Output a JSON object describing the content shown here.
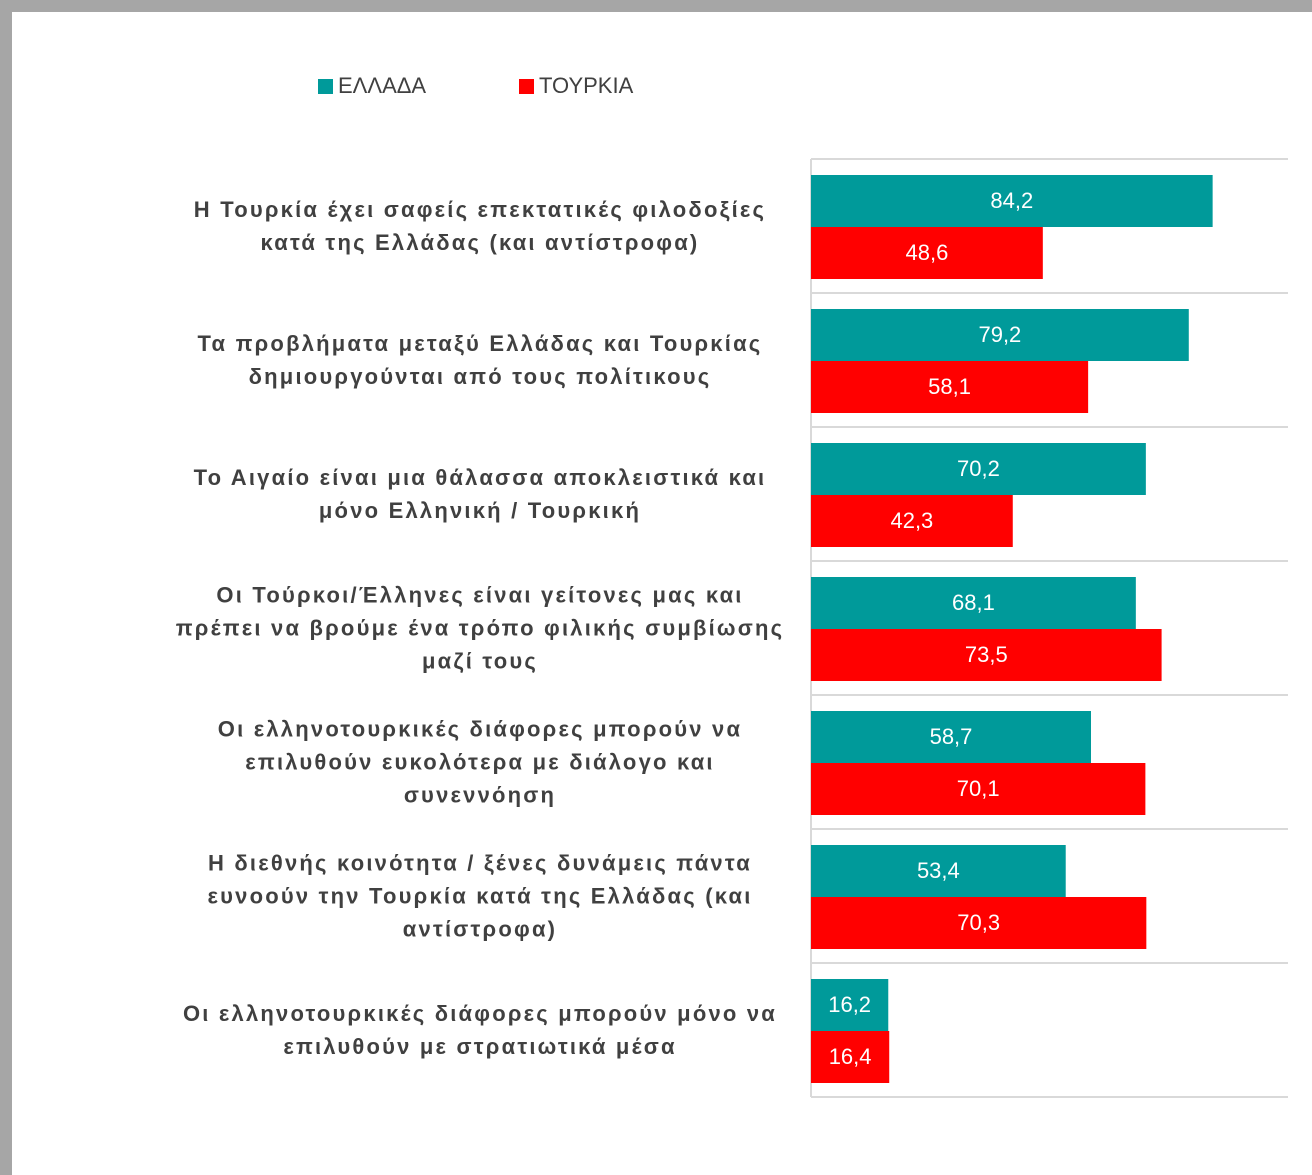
{
  "chart_data": {
    "type": "hbar",
    "categories": [
      "Η Τουρκία έχει σαφείς επεκτατικές φιλοδοξίες κατά της Ελλάδας (και αντίστροφα)",
      "Τα προβλήματα μεταξύ Ελλάδας και Τουρκίας δημιουργούνται από τους πολίτικους",
      "Το Αιγαίο είναι μια θάλασσα αποκλειστικά και μόνο Ελληνική / Τουρκική",
      "Οι Τούρκοι/Έλληνες είναι γείτονες μας και πρέπει να βρούμε ένα τρόπο φιλικής συμβίωσης μαζί τους",
      "Οι ελληνοτουρκικές διάφορες μπορούν να επιλυθούν ευκολότερα με διάλογο και συνεννόηση",
      "Η διεθνής κοινότητα / ξένες δυνάμεις πάντα ευνοούν την Τουρκία κατά της Ελλάδας (και αντίστροφα)",
      "Οι ελληνοτουρκικές διάφορες μπορούν μόνο να επιλυθούν με στρατιωτικά μέσα"
    ],
    "series": [
      {
        "name": "ΕΛΛΑΔΑ",
        "color": "#009a9a",
        "values": [
          84.2,
          79.2,
          70.2,
          68.1,
          58.7,
          53.4,
          16.2
        ],
        "value_labels": [
          "84,2",
          "79,2",
          "70,2",
          "68,1",
          "58,7",
          "53,4",
          "16,2"
        ]
      },
      {
        "name": "ΤΟΥΡΚΙΑ",
        "color": "#ff0000",
        "values": [
          48.6,
          58.1,
          42.3,
          73.5,
          70.1,
          70.3,
          16.4
        ],
        "value_labels": [
          "48,6",
          "58,1",
          "42,3",
          "73,5",
          "70,1",
          "70,3",
          "16,4"
        ]
      }
    ],
    "xlim": [
      0,
      100
    ],
    "legend": "top"
  }
}
